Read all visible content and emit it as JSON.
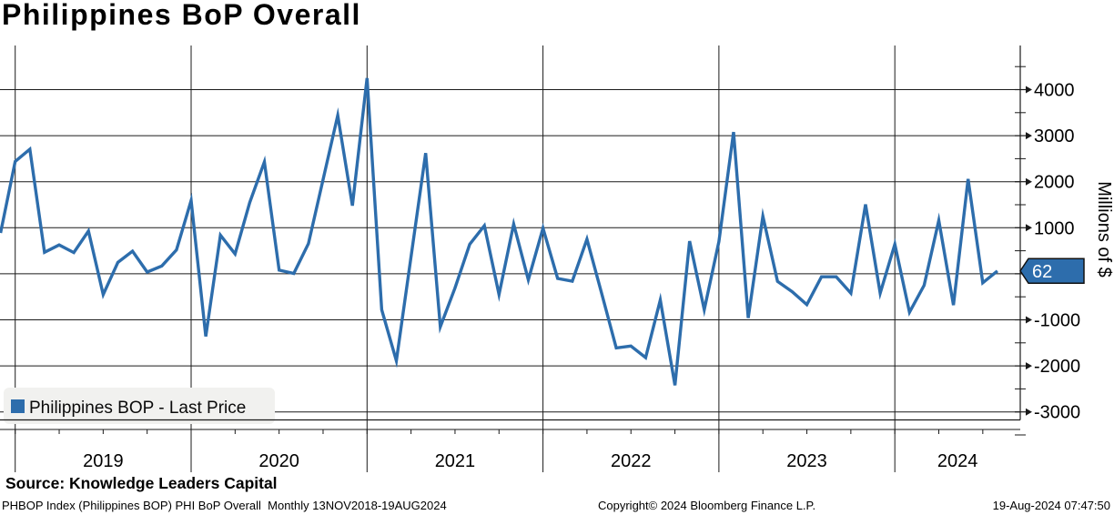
{
  "header": {
    "title": "Philippines BoP Overall"
  },
  "legend": {
    "label": "Philippines BOP - Last Price"
  },
  "badge": {
    "last_price": "62"
  },
  "y_axis": {
    "unit_label": "Millions of $"
  },
  "x_axis": {
    "year_labels": [
      "2019",
      "2020",
      "2021",
      "2022",
      "2023",
      "2024"
    ]
  },
  "source": {
    "text": "Source: Knowledge Leaders Capital"
  },
  "footer": {
    "left": "PHBOP Index (Philippines BOP) PHI BoP Overall  Monthly 13NOV2018-19AUG2024",
    "center": "Copyright© 2024 Bloomberg Finance L.P.",
    "right": "19-Aug-2024 07:47:50"
  },
  "colors": {
    "line": "#2d6dac",
    "badge_fill": "#2d6dac",
    "badge_text": "#ffffff",
    "grid": "#1a1a1a",
    "legend_bg": "#f1f1ef"
  },
  "chart_data": {
    "type": "line",
    "title": "Philippines BoP Overall",
    "series_name": "Philippines BOP - Last Price",
    "ylabel": "Millions of $",
    "xlabel": "",
    "frequency": "Monthly",
    "date_range": "13NOV2018-19AUG2024",
    "legend_position": "bottom-left",
    "grid": "on",
    "ylim": [
      -3500,
      4500
    ],
    "grid_values": [
      4000,
      3000,
      2000,
      1000,
      0,
      -1000,
      -2000,
      -3000
    ],
    "minor_tick_values": [
      4500,
      3500,
      2500,
      1500,
      500,
      -500,
      -1500,
      -2500,
      -3500
    ],
    "last_price": 62,
    "x": [
      "Nov 2018",
      "Dec 2018",
      "Jan 2019",
      "Feb 2019",
      "Mar 2019",
      "Apr 2019",
      "May 2019",
      "Jun 2019",
      "Jul 2019",
      "Aug 2019",
      "Sep 2019",
      "Oct 2019",
      "Nov 2019",
      "Dec 2019",
      "Jan 2020",
      "Feb 2020",
      "Mar 2020",
      "Apr 2020",
      "May 2020",
      "Jun 2020",
      "Jul 2020",
      "Aug 2020",
      "Sep 2020",
      "Oct 2020",
      "Nov 2020",
      "Dec 2020",
      "Jan 2021",
      "Feb 2021",
      "Mar 2021",
      "Apr 2021",
      "May 2021",
      "Jun 2021",
      "Jul 2021",
      "Aug 2021",
      "Sep 2021",
      "Oct 2021",
      "Nov 2021",
      "Dec 2021",
      "Jan 2022",
      "Feb 2022",
      "Mar 2022",
      "Apr 2022",
      "May 2022",
      "Jun 2022",
      "Jul 2022",
      "Aug 2022",
      "Sep 2022",
      "Oct 2022",
      "Nov 2022",
      "Dec 2022",
      "Jan 2023",
      "Feb 2023",
      "Mar 2023",
      "Apr 2023",
      "May 2023",
      "Jun 2023",
      "Jul 2023",
      "Aug 2023",
      "Sep 2023",
      "Oct 2023",
      "Nov 2023",
      "Dec 2023",
      "Jan 2024",
      "Feb 2024",
      "Mar 2024",
      "Apr 2024",
      "May 2024",
      "Jun 2024",
      "Jul 2024"
    ],
    "values": [
      887,
      2440,
      2705,
      467,
      627,
      460,
      928,
      -450,
      248,
      493,
      38,
      170,
      520,
      1590,
      -1360,
      839,
      430,
      1550,
      2430,
      80,
      8,
      657,
      2050,
      3440,
      1480,
      4250,
      -780,
      -1890,
      365,
      2620,
      -1150,
      -310,
      640,
      1045,
      -450,
      1080,
      -130,
      990,
      -100,
      -160,
      750,
      -420,
      -1610,
      -1570,
      -1820,
      -570,
      -2420,
      710,
      -780,
      700,
      3080,
      -960,
      1250,
      -165,
      -390,
      -670,
      -65,
      -65,
      -420,
      1505,
      -420,
      642,
      -835,
      -250,
      1160,
      -680,
      2060,
      -195,
      62
    ]
  }
}
